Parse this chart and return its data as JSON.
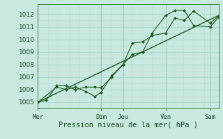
{
  "bg_color": "#c8e8e0",
  "grid_major_color": "#aad8d0",
  "grid_minor_color": "#bbddd8",
  "line_color": "#1a5c1a",
  "marker_color": "#1a5c1a",
  "title": "Pression niveau de la mer( hPa )",
  "ylim": [
    1004.5,
    1012.8
  ],
  "xlim": [
    0,
    8.7
  ],
  "yticks": [
    1005,
    1006,
    1007,
    1008,
    1009,
    1010,
    1011,
    1012
  ],
  "xtick_labels": [
    "Mer",
    "Dim",
    "Jeu",
    "Ven",
    "Sam"
  ],
  "xtick_positions": [
    0,
    3.05,
    4.1,
    6.15,
    8.3
  ],
  "vlines": [
    3.05,
    4.1,
    6.15,
    8.3
  ],
  "series": [
    [
      0,
      1005.0,
      0.4,
      1005.15,
      0.9,
      1006.3,
      1.35,
      1006.3,
      1.8,
      1006.0,
      2.3,
      1006.2,
      2.75,
      1006.2,
      3.05,
      1006.15,
      3.55,
      1007.0,
      4.1,
      1008.0,
      4.55,
      1009.7,
      5.05,
      1009.8,
      5.5,
      1010.3,
      6.15,
      1010.5,
      6.6,
      1011.7,
      7.05,
      1011.5,
      7.5,
      1012.25,
      8.3,
      1011.3,
      8.7,
      1011.85
    ],
    [
      0,
      1005.0,
      0.9,
      1006.2,
      1.35,
      1006.0,
      1.8,
      1006.2,
      2.3,
      1005.85,
      2.75,
      1005.45,
      3.05,
      1005.8,
      3.55,
      1007.1,
      4.1,
      1008.0,
      4.55,
      1008.8,
      5.05,
      1009.0,
      5.5,
      1010.5,
      6.15,
      1011.9,
      6.6,
      1012.3,
      7.05,
      1012.3,
      7.5,
      1011.1,
      8.3,
      1011.0,
      8.7,
      1011.75
    ],
    [
      0,
      1005.0,
      8.7,
      1011.9
    ]
  ],
  "series_styles": [
    {
      "marker": "D",
      "ms": 2.0,
      "lw": 0.8
    },
    {
      "marker": "D",
      "ms": 2.0,
      "lw": 0.8
    },
    {
      "marker": null,
      "ms": 0,
      "lw": 1.0
    }
  ],
  "title_fontsize": 7.5,
  "tick_fontsize": 6.5
}
